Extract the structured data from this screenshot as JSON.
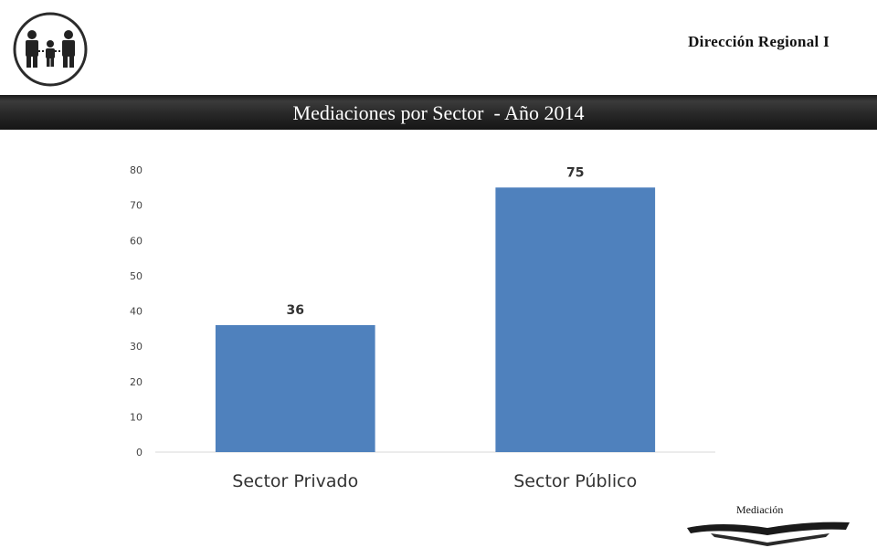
{
  "header": {
    "region": "Dirección Regional I",
    "logo_icon": "family-icon"
  },
  "banner": {
    "title": "Mediaciones por Sector  - Año 2014"
  },
  "footer": {
    "label": "Mediación",
    "logo_icon": "open-book-icon"
  },
  "chart_data": {
    "type": "bar",
    "categories": [
      "Sector Privado",
      "Sector Público"
    ],
    "values": [
      36,
      75
    ],
    "title": "Mediaciones por Sector  - Año 2014",
    "xlabel": "",
    "ylabel": "",
    "ylim": [
      0,
      80
    ],
    "yticks": [
      0,
      10,
      20,
      30,
      40,
      50,
      60,
      70,
      80
    ],
    "grid": false,
    "legend": "none",
    "bar_color": "#4f81bd",
    "data_labels": true
  }
}
